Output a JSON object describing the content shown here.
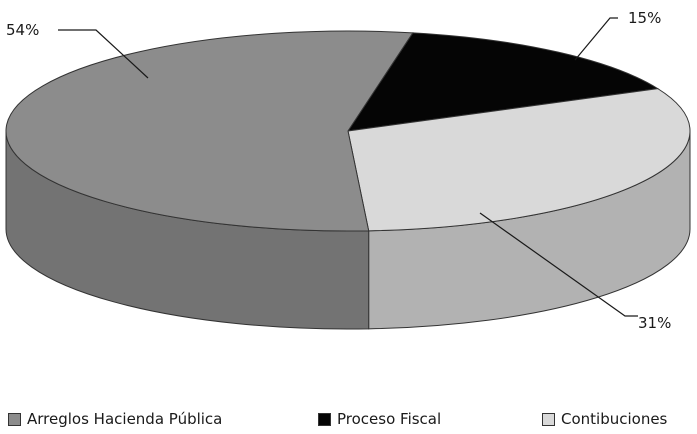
{
  "chart_data": {
    "type": "pie",
    "categories": [
      "Arreglos Hacienda Pública",
      "Proceso Fiscal",
      "Contibuciones"
    ],
    "values": [
      54,
      15,
      31
    ],
    "labels": [
      "54%",
      "15%",
      "31%"
    ],
    "colors": [
      "#8c8c8c",
      "#050505",
      "#d9d9d9"
    ],
    "title": "",
    "legend_position": "bottom",
    "three_d": true
  }
}
